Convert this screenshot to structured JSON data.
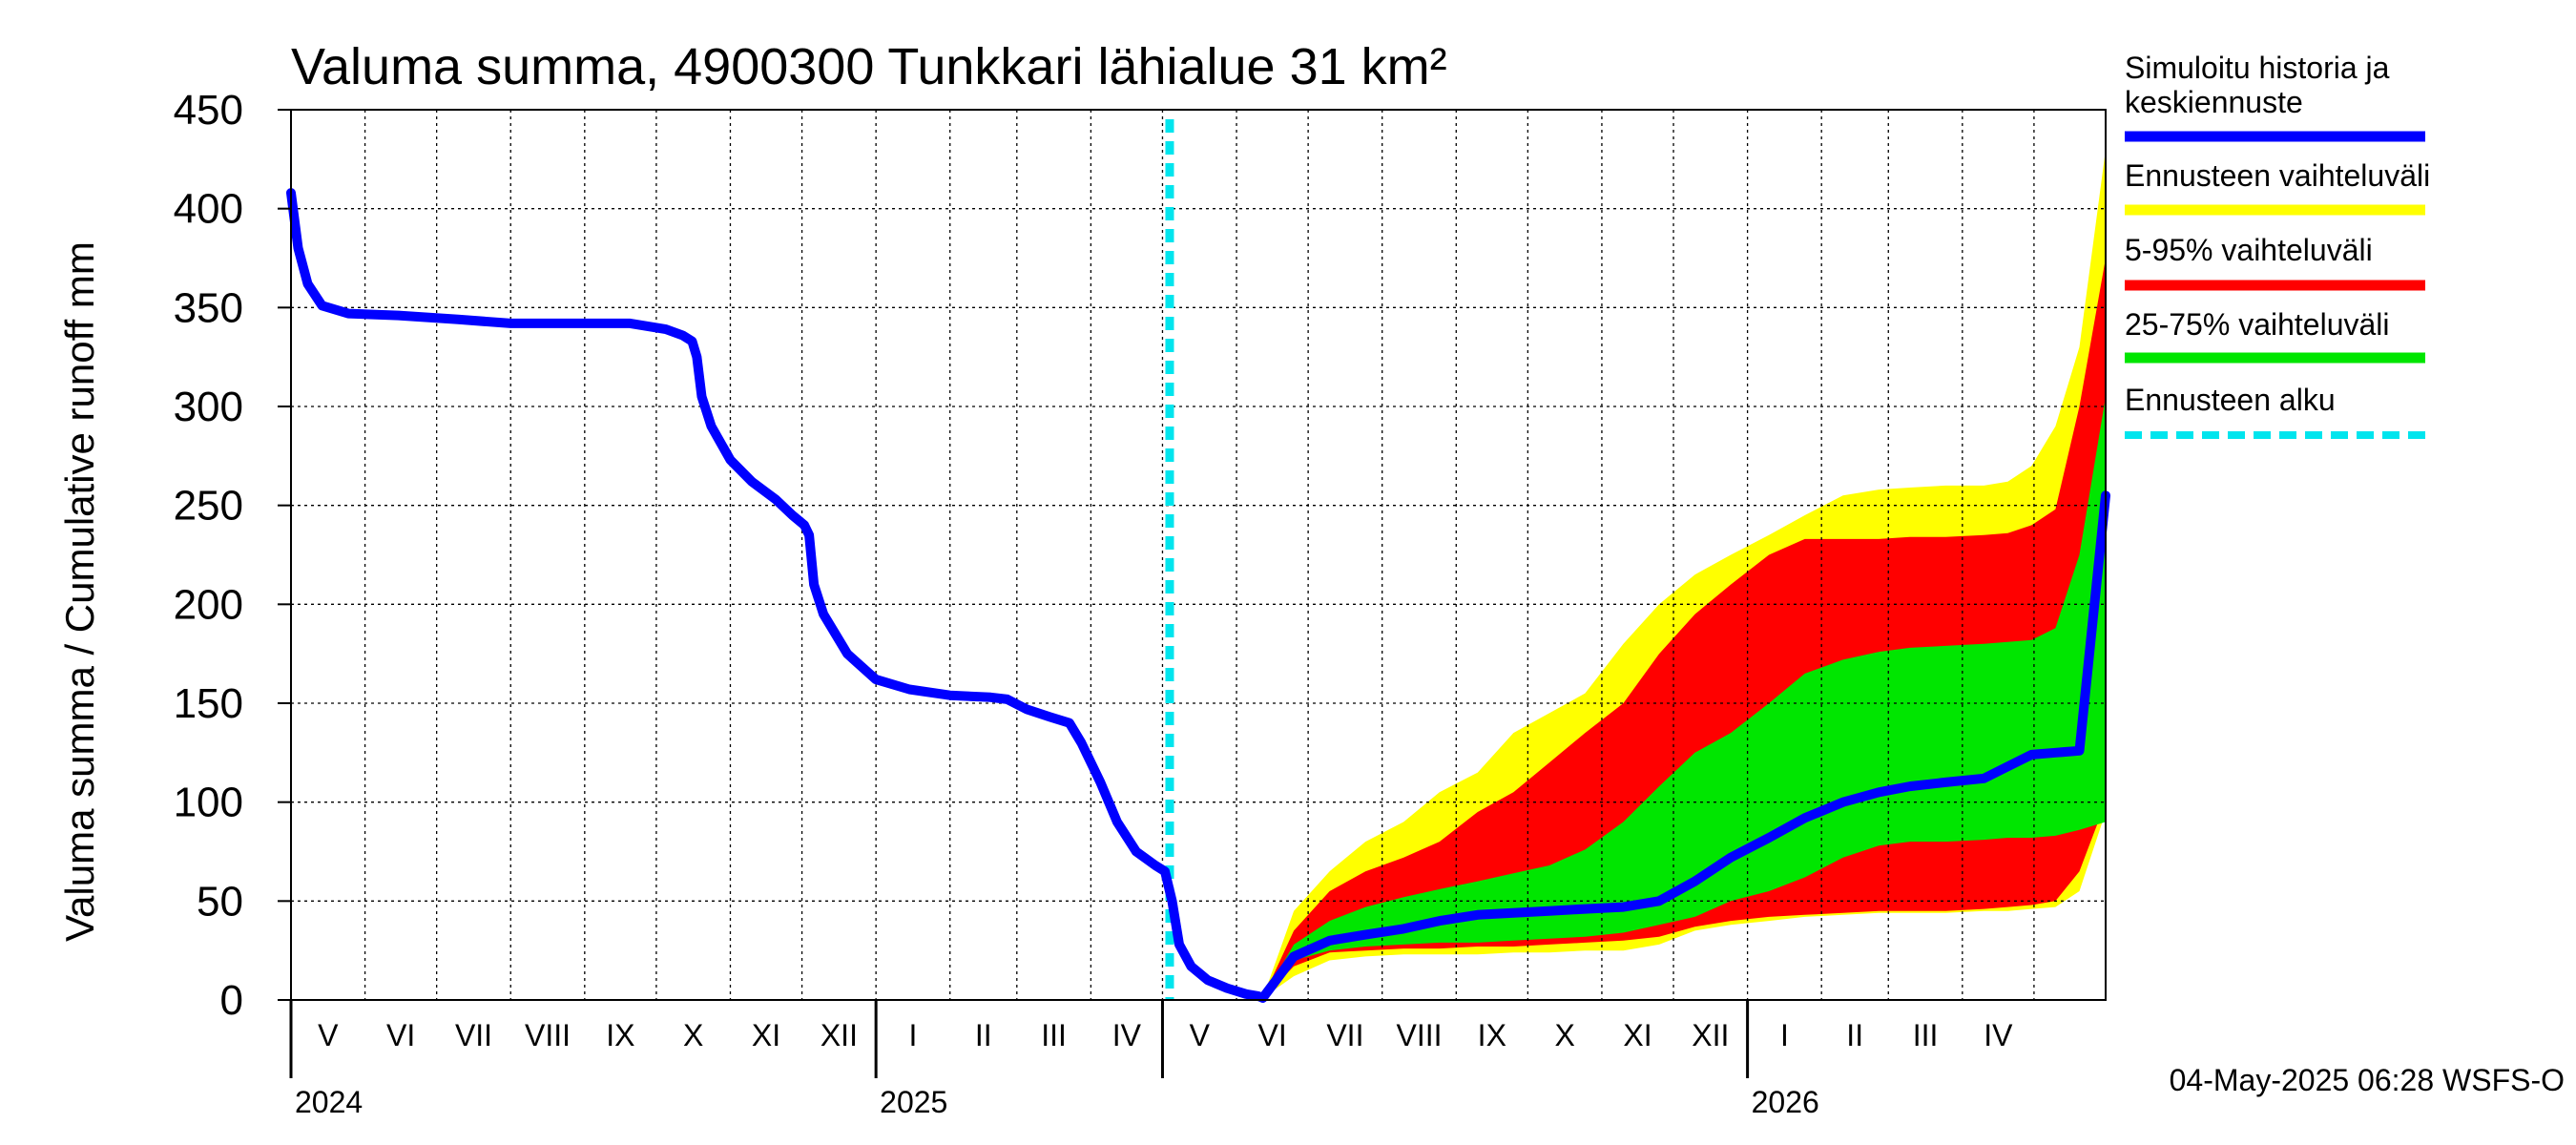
{
  "chart_data": {
    "type": "area",
    "title": "Valuma summa, 4900300 Tunkkari lähialue 31 km²",
    "ylabel": "Valuma summa / Cumulative runoff    mm",
    "ylim": [
      0,
      450
    ],
    "yticks": [
      0,
      50,
      100,
      150,
      200,
      250,
      300,
      350,
      400,
      450
    ],
    "x_start": "2024-05-01",
    "x_end": "2026-05-31",
    "forecast_start": "2025-05-04",
    "grid": true,
    "legend_position": "right",
    "month_labels": [
      "V",
      "VI",
      "VII",
      "VIII",
      "IX",
      "X",
      "XI",
      "XII",
      "I",
      "II",
      "III",
      "IV",
      "V",
      "VI",
      "VII",
      "VIII",
      "IX",
      "X",
      "XI",
      "XII",
      "I",
      "II",
      "III",
      "IV"
    ],
    "year_labels": [
      {
        "label": "2024",
        "date": "2024-05-01"
      },
      {
        "label": "2025",
        "date": "2025-01-01"
      },
      {
        "label": "2026",
        "date": "2026-01-01"
      }
    ],
    "history": {
      "name": "Simuloitu historia ja keskiennuste",
      "color": "#0000ff",
      "points": [
        [
          "2024-05-01",
          408
        ],
        [
          "2024-05-04",
          380
        ],
        [
          "2024-05-08",
          362
        ],
        [
          "2024-05-14",
          351
        ],
        [
          "2024-05-25",
          347
        ],
        [
          "2024-06-15",
          346
        ],
        [
          "2024-07-10",
          344
        ],
        [
          "2024-08-01",
          342
        ],
        [
          "2024-08-20",
          342
        ],
        [
          "2024-09-05",
          342
        ],
        [
          "2024-09-20",
          342
        ],
        [
          "2024-10-05",
          339
        ],
        [
          "2024-10-12",
          336
        ],
        [
          "2024-10-16",
          333
        ],
        [
          "2024-10-18",
          325
        ],
        [
          "2024-10-20",
          305
        ],
        [
          "2024-10-24",
          290
        ],
        [
          "2024-11-01",
          273
        ],
        [
          "2024-11-10",
          262
        ],
        [
          "2024-11-20",
          253
        ],
        [
          "2024-11-27",
          245
        ],
        [
          "2024-12-02",
          240
        ],
        [
          "2024-12-04",
          235
        ],
        [
          "2024-12-06",
          210
        ],
        [
          "2024-12-10",
          195
        ],
        [
          "2024-12-20",
          175
        ],
        [
          "2025-01-01",
          162
        ],
        [
          "2025-01-15",
          157
        ],
        [
          "2025-02-01",
          154
        ],
        [
          "2025-02-18",
          153
        ],
        [
          "2025-02-25",
          152
        ],
        [
          "2025-03-05",
          147
        ],
        [
          "2025-03-15",
          143
        ],
        [
          "2025-03-23",
          140
        ],
        [
          "2025-03-28",
          130
        ],
        [
          "2025-04-05",
          110
        ],
        [
          "2025-04-12",
          90
        ],
        [
          "2025-04-20",
          75
        ],
        [
          "2025-04-28",
          68
        ],
        [
          "2025-05-02",
          65
        ],
        [
          "2025-05-05",
          50
        ],
        [
          "2025-05-08",
          28
        ],
        [
          "2025-05-13",
          17
        ],
        [
          "2025-05-20",
          10
        ],
        [
          "2025-05-28",
          6
        ],
        [
          "2025-06-05",
          3
        ],
        [
          "2025-06-10",
          2
        ],
        [
          "2025-06-12",
          1
        ]
      ]
    },
    "forecast_x": [
      "2025-06-12",
      "2025-06-25",
      "2025-07-10",
      "2025-07-25",
      "2025-08-10",
      "2025-08-25",
      "2025-09-10",
      "2025-09-25",
      "2025-10-10",
      "2025-10-25",
      "2025-11-10",
      "2025-11-25",
      "2025-12-10",
      "2025-12-25",
      "2026-01-10",
      "2026-01-25",
      "2026-02-10",
      "2026-02-25",
      "2026-03-10",
      "2026-03-25",
      "2026-04-10",
      "2026-04-20",
      "2026-04-30",
      "2026-05-10",
      "2026-05-20",
      "2026-05-31"
    ],
    "series": [
      {
        "name": "Ennusteen vaihteluväli",
        "color": "#ffff00",
        "lower": [
          1,
          12,
          20,
          22,
          23,
          23,
          23,
          24,
          24,
          25,
          25,
          28,
          35,
          38,
          40,
          42,
          43,
          44,
          44,
          44,
          45,
          45,
          46,
          47,
          55,
          95
        ],
        "upper": [
          1,
          45,
          65,
          80,
          90,
          105,
          115,
          135,
          145,
          155,
          180,
          200,
          215,
          225,
          235,
          245,
          255,
          258,
          259,
          260,
          260,
          262,
          270,
          290,
          330,
          430
        ]
      },
      {
        "name": "5-95% vaihteluväli",
        "color": "#ff0000",
        "lower": [
          1,
          17,
          24,
          25,
          26,
          26,
          27,
          27,
          28,
          29,
          30,
          32,
          37,
          40,
          42,
          43,
          44,
          45,
          45,
          45,
          46,
          47,
          48,
          50,
          65,
          100
        ],
        "upper": [
          1,
          35,
          55,
          65,
          72,
          80,
          95,
          105,
          120,
          135,
          150,
          175,
          195,
          210,
          225,
          233,
          233,
          233,
          234,
          234,
          235,
          236,
          240,
          248,
          300,
          375
        ]
      },
      {
        "name": "25-75% vaihteluväli",
        "color": "#00e600",
        "lower": [
          1,
          20,
          25,
          27,
          28,
          29,
          29,
          30,
          31,
          32,
          34,
          38,
          42,
          50,
          55,
          62,
          72,
          78,
          80,
          80,
          81,
          82,
          82,
          83,
          86,
          90
        ],
        "upper": [
          1,
          28,
          40,
          47,
          52,
          56,
          60,
          64,
          68,
          76,
          90,
          108,
          125,
          135,
          150,
          165,
          172,
          176,
          178,
          179,
          180,
          181,
          182,
          188,
          225,
          305
        ]
      },
      {
        "name": "Simuloitu historia ja keskiennuste",
        "color": "#0000ff",
        "values": [
          1,
          22,
          30,
          33,
          36,
          40,
          43,
          44,
          45,
          46,
          47,
          50,
          60,
          72,
          82,
          92,
          100,
          105,
          108,
          110,
          112,
          118,
          124,
          125,
          126,
          255
        ]
      }
    ],
    "legend": [
      {
        "label": "Simuloitu historia ja keskiennuste",
        "color": "#0000ff",
        "style": "solid"
      },
      {
        "label": "Ennusteen vaihteluväli",
        "color": "#ffff00",
        "style": "solid"
      },
      {
        "label": "5-95% vaihteluväli",
        "color": "#ff0000",
        "style": "solid"
      },
      {
        "label": "25-75% vaihteluväli",
        "color": "#00e600",
        "style": "solid"
      },
      {
        "label": "Ennusteen alku",
        "color": "#00e5ee",
        "style": "dashed"
      }
    ],
    "timestamp": "04-May-2025 06:28 WSFS-O"
  }
}
